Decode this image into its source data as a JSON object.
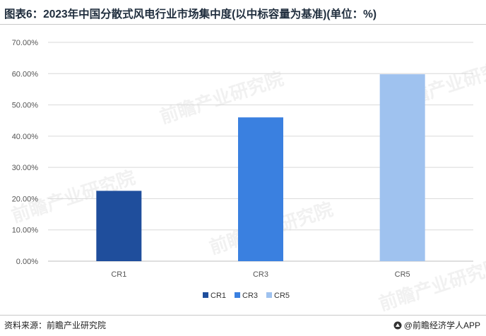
{
  "title": "图表6：2023年中国分散式风电行业市场集中度(以中标容量为基准)(单位：%)",
  "footer": {
    "source": "资料来源：前瞻产业研究院",
    "brand": "@前瞻经济学人APP"
  },
  "watermark": "前瞻产业研究院",
  "colors": {
    "CR1": "#1f4e9c",
    "CR3": "#3a80e0",
    "CR5": "#9fc2ef",
    "grid": "#d9d9d9"
  },
  "chart_data": {
    "type": "bar",
    "categories": [
      "CR1",
      "CR3",
      "CR5"
    ],
    "values": [
      22.5,
      46.0,
      59.8
    ],
    "ylim": [
      0,
      70
    ],
    "yticks": [
      "0.00%",
      "10.00%",
      "20.00%",
      "30.00%",
      "40.00%",
      "50.00%",
      "60.00%",
      "70.00%"
    ],
    "legend": [
      "CR1",
      "CR3",
      "CR5"
    ],
    "legend_position": "bottom",
    "grid": true,
    "xlabel": "",
    "ylabel": ""
  }
}
